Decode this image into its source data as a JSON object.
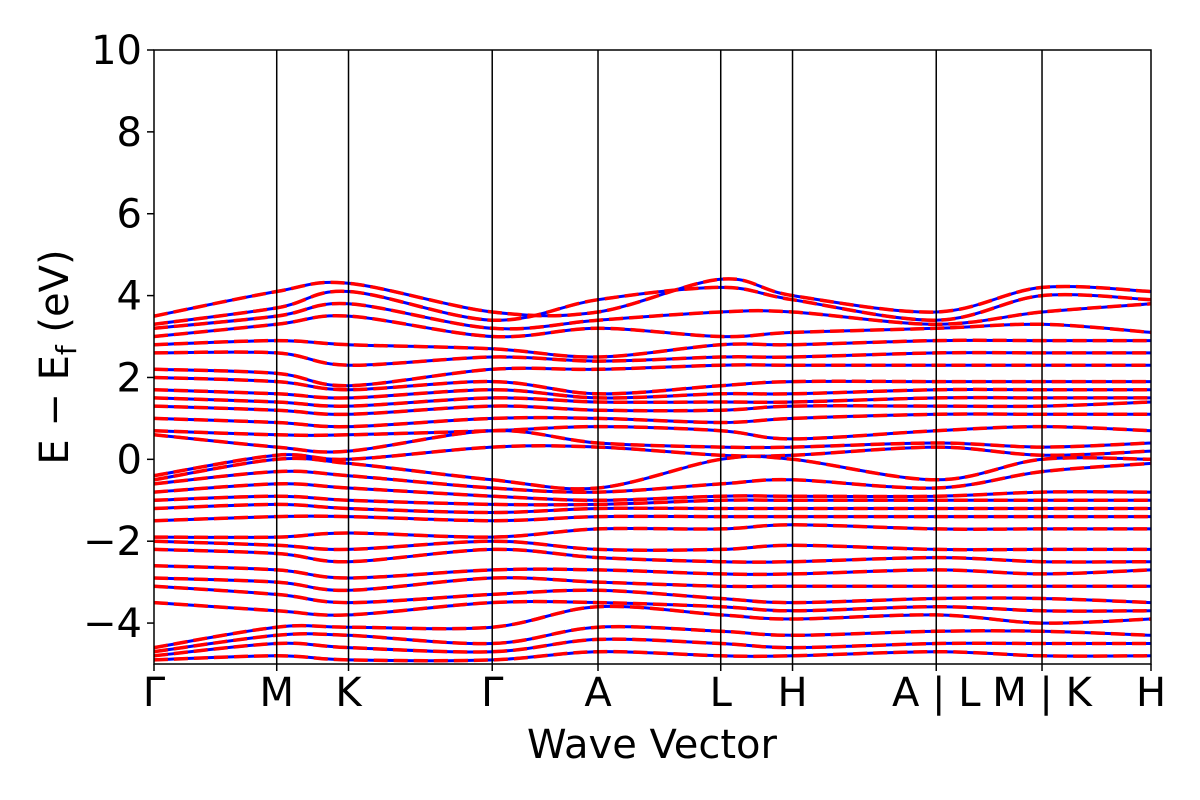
{
  "chart_data": {
    "type": "line",
    "xlabel": "Wave Vector",
    "ylabel": "E − E_f (eV)",
    "ylabel_main": "E − E",
    "ylabel_sub": "f",
    "ylabel_unit": " (eV)",
    "ylim": [
      -5,
      10
    ],
    "yticks": [
      {
        "value": -4,
        "label": "−4"
      },
      {
        "value": -2,
        "label": "−2"
      },
      {
        "value": 0,
        "label": "0"
      },
      {
        "value": 2,
        "label": "2"
      },
      {
        "value": 4,
        "label": "4"
      },
      {
        "value": 6,
        "label": "6"
      },
      {
        "value": 8,
        "label": "8"
      },
      {
        "value": 10,
        "label": "10"
      }
    ],
    "xlim": [
      0,
      8.124
    ],
    "kpoint_labels": [
      {
        "value": 0.0,
        "label": "Γ"
      },
      {
        "value": 1.0,
        "label": "M"
      },
      {
        "value": 1.585,
        "label": "K"
      },
      {
        "value": 2.756,
        "label": "Γ"
      },
      {
        "value": 3.618,
        "label": "A"
      },
      {
        "value": 4.618,
        "label": "L"
      },
      {
        "value": 5.203,
        "label": "H"
      },
      {
        "value": 6.374,
        "label": "A | L"
      },
      {
        "value": 7.236,
        "label": "M | K"
      },
      {
        "value": 8.124,
        "label": "H"
      }
    ],
    "segment_breaks": [
      0.0,
      1.0,
      1.585,
      2.756,
      3.618,
      4.618,
      5.203,
      6.374,
      7.236,
      8.124
    ],
    "grid": false,
    "series_styles": [
      {
        "style": "solid",
        "color": "#0000ff"
      },
      {
        "style": "dashed",
        "color": "#ff0000"
      }
    ],
    "bands": [
      {
        "energies": [
          3.5,
          4.1,
          4.3,
          3.6,
          3.6,
          4.4,
          4.0,
          3.6,
          4.2,
          4.1,
          4.0
        ]
      },
      {
        "energies": [
          3.3,
          3.7,
          4.1,
          3.4,
          3.9,
          4.2,
          3.9,
          3.4,
          4.0,
          3.9,
          3.9
        ]
      },
      {
        "energies": [
          3.2,
          3.5,
          3.8,
          3.2,
          3.4,
          3.6,
          3.6,
          3.3,
          3.6,
          3.8,
          3.8
        ]
      },
      {
        "energies": [
          3.0,
          3.3,
          3.5,
          3.0,
          3.2,
          3.0,
          3.1,
          3.2,
          3.3,
          3.1,
          3.1
        ]
      },
      {
        "energies": [
          2.8,
          2.9,
          2.8,
          2.7,
          2.5,
          2.8,
          2.8,
          2.9,
          2.9,
          2.9,
          3.0
        ]
      },
      {
        "energies": [
          2.6,
          2.6,
          2.3,
          2.5,
          2.4,
          2.5,
          2.5,
          2.6,
          2.6,
          2.6,
          2.5
        ]
      },
      {
        "energies": [
          2.2,
          2.1,
          1.8,
          2.2,
          2.2,
          2.3,
          2.3,
          2.3,
          2.3,
          2.3,
          2.3
        ]
      },
      {
        "energies": [
          2.0,
          1.9,
          1.7,
          1.9,
          1.6,
          1.8,
          1.9,
          1.9,
          1.9,
          1.9,
          1.9
        ]
      },
      {
        "energies": [
          1.7,
          1.6,
          1.5,
          1.7,
          1.5,
          1.6,
          1.6,
          1.7,
          1.7,
          1.7,
          1.7
        ]
      },
      {
        "energies": [
          1.5,
          1.4,
          1.3,
          1.5,
          1.4,
          1.4,
          1.4,
          1.5,
          1.5,
          1.5,
          1.5
        ]
      },
      {
        "energies": [
          1.3,
          1.2,
          1.1,
          1.3,
          1.2,
          1.2,
          1.3,
          1.3,
          1.3,
          1.4,
          1.4
        ]
      },
      {
        "energies": [
          1.0,
          0.9,
          0.8,
          1.0,
          1.0,
          0.9,
          1.0,
          1.1,
          1.1,
          1.1,
          1.1
        ]
      },
      {
        "energies": [
          0.7,
          0.6,
          0.6,
          0.7,
          0.8,
          0.7,
          0.5,
          0.7,
          0.8,
          0.7,
          0.6
        ]
      },
      {
        "energies": [
          0.6,
          0.3,
          0.2,
          0.7,
          0.4,
          0.3,
          0.3,
          0.4,
          0.3,
          0.4,
          0.4
        ]
      },
      {
        "energies": [
          -0.4,
          0.1,
          0.0,
          0.3,
          0.3,
          0.1,
          0.1,
          0.3,
          0.1,
          0.2,
          0.2
        ]
      },
      {
        "energies": [
          -0.5,
          0.0,
          -0.1,
          -0.5,
          -0.7,
          0.0,
          0.0,
          -0.5,
          0.0,
          0.0,
          0.0
        ]
      },
      {
        "energies": [
          -0.6,
          -0.3,
          -0.4,
          -0.7,
          -0.8,
          -0.6,
          -0.5,
          -0.7,
          -0.3,
          -0.1,
          -0.2
        ]
      },
      {
        "energies": [
          -0.8,
          -0.6,
          -0.7,
          -0.9,
          -1.0,
          -0.9,
          -0.9,
          -0.9,
          -0.8,
          -0.8,
          -0.8
        ]
      },
      {
        "energies": [
          -1.0,
          -0.9,
          -1.0,
          -1.1,
          -1.1,
          -1.0,
          -1.0,
          -1.0,
          -1.0,
          -1.0,
          -1.0
        ]
      },
      {
        "energies": [
          -1.2,
          -1.1,
          -1.2,
          -1.3,
          -1.2,
          -1.2,
          -1.2,
          -1.2,
          -1.2,
          -1.2,
          -1.2
        ]
      },
      {
        "energies": [
          -1.5,
          -1.4,
          -1.4,
          -1.5,
          -1.4,
          -1.4,
          -1.4,
          -1.4,
          -1.4,
          -1.4,
          -1.4
        ]
      },
      {
        "energies": [
          -1.9,
          -1.9,
          -1.8,
          -1.9,
          -1.7,
          -1.7,
          -1.6,
          -1.7,
          -1.7,
          -1.7,
          -1.7
        ]
      },
      {
        "energies": [
          -2.0,
          -2.1,
          -2.2,
          -2.0,
          -2.2,
          -2.2,
          -2.1,
          -2.2,
          -2.2,
          -2.2,
          -2.2
        ]
      },
      {
        "energies": [
          -2.2,
          -2.3,
          -2.5,
          -2.2,
          -2.4,
          -2.5,
          -2.5,
          -2.4,
          -2.5,
          -2.5,
          -2.5
        ]
      },
      {
        "energies": [
          -2.6,
          -2.7,
          -2.9,
          -2.7,
          -2.7,
          -2.8,
          -2.8,
          -2.7,
          -2.8,
          -2.7,
          -2.7
        ]
      },
      {
        "energies": [
          -2.9,
          -3.0,
          -3.2,
          -2.9,
          -3.0,
          -3.1,
          -3.1,
          -3.1,
          -3.1,
          -3.1,
          -3.1
        ]
      },
      {
        "energies": [
          -3.1,
          -3.3,
          -3.5,
          -3.3,
          -3.2,
          -3.4,
          -3.5,
          -3.4,
          -3.4,
          -3.5,
          -3.5
        ]
      },
      {
        "energies": [
          -3.5,
          -3.7,
          -3.8,
          -3.5,
          -3.5,
          -3.6,
          -3.7,
          -3.6,
          -3.7,
          -3.7,
          -3.7
        ]
      },
      {
        "energies": [
          -4.6,
          -4.1,
          -4.1,
          -4.1,
          -3.6,
          -3.8,
          -3.9,
          -3.8,
          -4.0,
          -3.9,
          -3.9
        ]
      },
      {
        "energies": [
          -4.7,
          -4.3,
          -4.3,
          -4.5,
          -4.1,
          -4.2,
          -4.3,
          -4.2,
          -4.2,
          -4.3,
          -4.3
        ]
      },
      {
        "energies": [
          -4.8,
          -4.5,
          -4.6,
          -4.7,
          -4.4,
          -4.5,
          -4.6,
          -4.5,
          -4.5,
          -4.5,
          -4.5
        ]
      },
      {
        "energies": [
          -4.9,
          -4.8,
          -4.9,
          -4.9,
          -4.7,
          -4.8,
          -4.8,
          -4.7,
          -4.8,
          -4.8,
          -4.8
        ]
      }
    ]
  }
}
